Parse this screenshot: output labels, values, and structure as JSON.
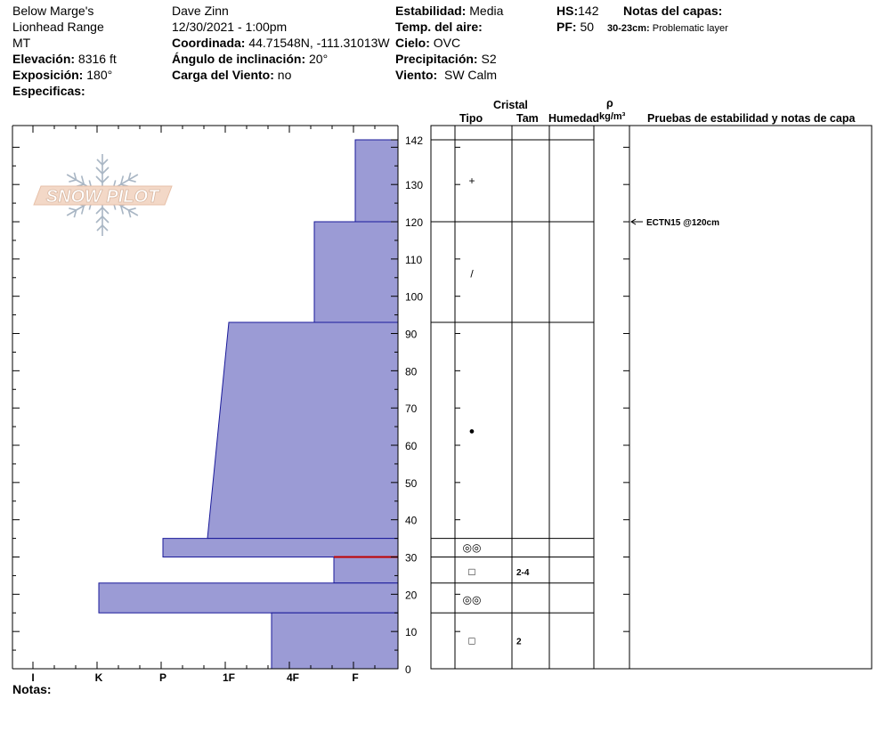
{
  "header": {
    "location": "Below Marge's",
    "range": "Lionhead Range",
    "state": "MT",
    "elevation_label": "Elevación:",
    "elevation_value": "8316 ft",
    "exposure_label": "Exposición:",
    "exposure_value": "180°",
    "specifics_label": "Especificas:",
    "observer": "Dave Zinn",
    "datetime": "12/30/2021 - 1:00pm",
    "coord_label": "Coordinada:",
    "coord_value": "44.71548N, -111.31013W",
    "slope_label": "Ángulo de inclinación:",
    "slope_value": "20°",
    "wind_load_label": "Carga del Viento:",
    "wind_load_value": "no",
    "stability_label": "Estabilidad:",
    "stability_value": "Media",
    "air_temp_label": "Temp. del aire:",
    "sky_label": "Cielo:",
    "sky_value": "OVC",
    "precip_label": "Precipitación:",
    "precip_value": "S2",
    "wind_label": "Viento:",
    "wind_value": "SW Calm",
    "hs_label": "HS:",
    "hs_value": "142",
    "pf_label": "PF:",
    "pf_value": "50",
    "layer_notes_label": "Notas del capas:",
    "layer_note_range": "30-23cm:",
    "layer_note_text": "Problematic layer"
  },
  "columns": {
    "crystal": "Cristal",
    "type": "Tipo",
    "size": "Tam",
    "moisture": "Humedad",
    "rho": "ρ",
    "density_unit": "kg/m³",
    "stability_notes": "Pruebas de estabilidad y notas de capa"
  },
  "logo_text": "SNOW PILOT",
  "notes_label": "Notas:",
  "colors": {
    "hardness_fill": "#9b9bd5",
    "hardness_stroke": "#1a1a9a",
    "weak_layer": "#c00000"
  },
  "chart_data": {
    "type": "snow_profile",
    "y_axis": {
      "min": 0,
      "max": 142,
      "ticks": [
        0,
        10,
        20,
        30,
        40,
        50,
        60,
        70,
        80,
        90,
        100,
        110,
        120,
        130,
        142
      ],
      "unit": "cm"
    },
    "hardness_scale": [
      "I",
      "K",
      "P",
      "1F",
      "4F",
      "F"
    ],
    "layers": [
      {
        "top": 142,
        "bottom": 120,
        "hardness_top": "F",
        "hardness_bottom": "F"
      },
      {
        "top": 120,
        "bottom": 93,
        "hardness_top": "4F-",
        "hardness_bottom": "4F-"
      },
      {
        "top": 93,
        "bottom": 35,
        "hardness_top": "1F",
        "hardness_bottom": "1F+"
      },
      {
        "top": 35,
        "bottom": 30,
        "hardness_top": "P",
        "hardness_bottom": "P"
      },
      {
        "top": 30,
        "bottom": 23,
        "hardness_top": "F+",
        "hardness_bottom": "F+"
      },
      {
        "top": 23,
        "bottom": 15,
        "hardness_top": "K",
        "hardness_bottom": "K"
      },
      {
        "top": 15,
        "bottom": 0,
        "hardness_top": "4F+",
        "hardness_bottom": "4F+"
      }
    ],
    "weak_layer_depth": 30,
    "layer_boundaries": [
      142,
      120,
      93,
      35,
      30,
      23,
      15,
      0
    ],
    "crystals": [
      {
        "depth": 131,
        "symbol": "+",
        "size": ""
      },
      {
        "depth": 106,
        "symbol": "/",
        "size": ""
      },
      {
        "depth": 64,
        "symbol": "●",
        "size": ""
      },
      {
        "depth": 32.5,
        "symbol": "◎◎",
        "size": ""
      },
      {
        "depth": 26,
        "symbol": "□",
        "size": "2-4"
      },
      {
        "depth": 18.5,
        "symbol": "◎◎",
        "size": ""
      },
      {
        "depth": 7.5,
        "symbol": "□",
        "size": "2"
      }
    ],
    "stability_tests": [
      {
        "depth": 120,
        "text": "ECTN15 @120cm"
      }
    ]
  }
}
